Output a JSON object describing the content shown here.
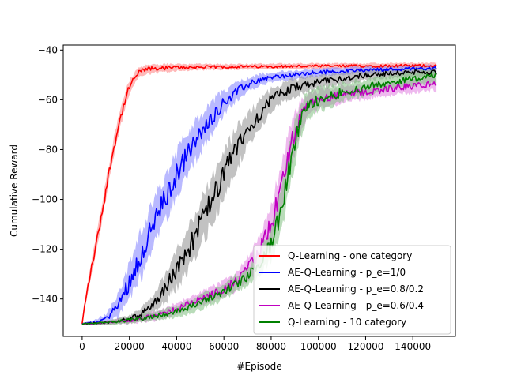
{
  "chart_data": {
    "type": "line",
    "xlabel": "#Episode",
    "ylabel": "Cumulative Reward",
    "xlim": [
      -8000,
      158000
    ],
    "ylim": [
      -155,
      -38
    ],
    "x_ticks": [
      0,
      20000,
      40000,
      60000,
      80000,
      100000,
      120000,
      140000
    ],
    "y_ticks": [
      -140,
      -120,
      -100,
      -80,
      -60,
      -40
    ],
    "grid": false,
    "legend_position": "lower-right",
    "series": [
      {
        "name": "Q-Learning - one category",
        "color": "#ff0000",
        "band_color": "#ff8080",
        "x": [
          0,
          1000,
          3000,
          6000,
          9000,
          12000,
          15000,
          18000,
          20000,
          23000,
          26000,
          30000,
          40000,
          60000,
          80000,
          100000,
          120000,
          140000,
          150000
        ],
        "y": [
          -150,
          -143,
          -132,
          -118,
          -102,
          -86,
          -72,
          -61,
          -55,
          -50,
          -48,
          -47.5,
          -47,
          -46.8,
          -46.6,
          -46.5,
          -46.4,
          -46.3,
          -46.3
        ],
        "band": [
          0.5,
          1.5,
          3,
          4,
          4,
          4,
          4,
          3.5,
          3,
          2.5,
          2,
          2,
          1.5,
          1.2,
          1.2,
          1.2,
          1.2,
          1.2,
          1.2
        ]
      },
      {
        "name": "AE-Q-Learning - p_e=1/0",
        "color": "#0000ff",
        "band_color": "#8080ff",
        "x": [
          0,
          5000,
          10000,
          15000,
          20000,
          25000,
          30000,
          35000,
          40000,
          45000,
          50000,
          55000,
          60000,
          65000,
          70000,
          75000,
          80000,
          90000,
          100000,
          110000,
          120000,
          130000,
          140000,
          150000
        ],
        "y": [
          -150,
          -149.5,
          -148,
          -143,
          -133,
          -122,
          -110,
          -100,
          -90,
          -81,
          -74,
          -67,
          -61,
          -57,
          -54,
          -52,
          -51,
          -50,
          -49,
          -48.5,
          -48,
          -47.8,
          -47.5,
          -47.3
        ],
        "band": [
          0.5,
          1,
          2,
          5,
          8,
          10,
          10,
          10,
          10,
          9,
          8,
          7,
          5,
          4,
          3,
          2.5,
          2,
          2,
          1.8,
          1.5,
          1.5,
          1.5,
          1.5,
          1.5
        ]
      },
      {
        "name": "AE-Q-Learning - p_e=0.8/0.2",
        "color": "#000000",
        "band_color": "#909090",
        "x": [
          0,
          10000,
          20000,
          25000,
          30000,
          35000,
          40000,
          45000,
          50000,
          55000,
          60000,
          65000,
          70000,
          75000,
          80000,
          85000,
          90000,
          100000,
          110000,
          120000,
          130000,
          140000,
          150000
        ],
        "y": [
          -150,
          -149.5,
          -148,
          -146,
          -142,
          -136,
          -128,
          -120,
          -110,
          -100,
          -90,
          -80,
          -72,
          -66,
          -60,
          -57,
          -55,
          -53,
          -51.5,
          -50,
          -49.5,
          -49,
          -49
        ],
        "band": [
          0.5,
          0.8,
          1.5,
          2.5,
          4,
          6,
          8,
          9,
          10,
          10,
          10,
          9,
          7,
          6,
          5,
          4,
          4,
          3,
          2.5,
          2.5,
          2,
          2,
          2
        ]
      },
      {
        "name": "AE-Q-Learning - p_e=0.6/0.4",
        "color": "#c000c0",
        "band_color": "#e080e0",
        "x": [
          0,
          10000,
          20000,
          30000,
          40000,
          50000,
          60000,
          65000,
          70000,
          75000,
          80000,
          83000,
          86000,
          89000,
          92000,
          95000,
          100000,
          110000,
          120000,
          130000,
          140000,
          150000
        ],
        "y": [
          -150,
          -149.5,
          -148.5,
          -147,
          -144,
          -140,
          -136,
          -133,
          -128,
          -121,
          -110,
          -100,
          -88,
          -76,
          -68,
          -63,
          -60,
          -58,
          -57,
          -55.5,
          -54.5,
          -53.5
        ],
        "band": [
          0.5,
          0.8,
          1.5,
          2,
          2.5,
          3,
          3.5,
          4,
          5,
          7,
          9,
          10,
          10,
          9,
          7,
          5,
          4,
          3.5,
          3,
          3,
          3,
          3
        ]
      },
      {
        "name": "Q-Learning - 10 category",
        "color": "#008000",
        "band_color": "#80c080",
        "x": [
          0,
          10000,
          20000,
          30000,
          40000,
          50000,
          60000,
          70000,
          75000,
          80000,
          83000,
          86000,
          89000,
          92000,
          95000,
          100000,
          110000,
          120000,
          130000,
          140000,
          150000
        ],
        "y": [
          -150,
          -149.5,
          -148.5,
          -147,
          -145,
          -141.5,
          -137,
          -131,
          -126,
          -118,
          -109,
          -96,
          -82,
          -70,
          -63,
          -60,
          -57,
          -55,
          -53,
          -51.5,
          -50.5
        ],
        "band": [
          0.5,
          0.8,
          1.5,
          2,
          2.5,
          3,
          3.5,
          4,
          5,
          7,
          9,
          10,
          10,
          8,
          6,
          5,
          4,
          3.5,
          3,
          3,
          3
        ]
      }
    ]
  }
}
